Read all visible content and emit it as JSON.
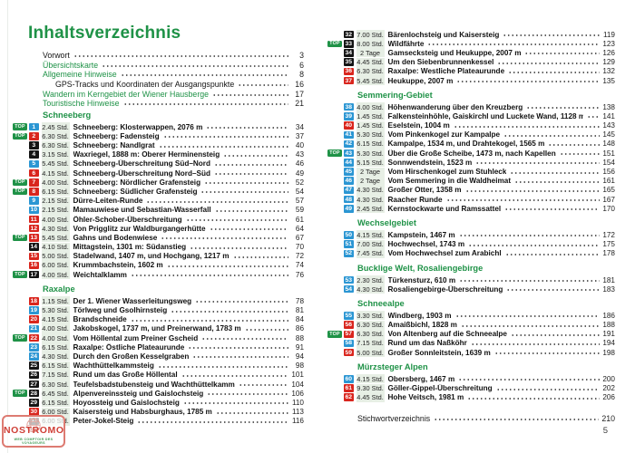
{
  "page": {
    "title": "Inhaltsverzeichnis",
    "page_number": "5"
  },
  "colors": {
    "green": "#1f9247",
    "blue": "#2b96d3",
    "red": "#d9251d",
    "black": "#141414",
    "time_bg": "#e7efe5",
    "stamp_red": "#cf3f36",
    "stamp_green": "#3f9a52",
    "stamp_border": "#dd7b72"
  },
  "labels": {
    "top_badge": "TOP"
  },
  "front_matter": [
    {
      "label": "Vorwort",
      "page": "3",
      "color": "black",
      "indent": false
    },
    {
      "label": "Übersichtskarte",
      "page": "6",
      "color": "green",
      "indent": false
    },
    {
      "label": "Allgemeine Hinweise",
      "page": "8",
      "color": "green",
      "indent": false
    },
    {
      "label": "GPS-Tracks und Koordinaten der Ausgangspunkte",
      "page": "16",
      "color": "black",
      "indent": true
    },
    {
      "label": "Wandern im Kerngebiet der Wiener Hausberge",
      "page": "17",
      "color": "green",
      "indent": false
    },
    {
      "label": "Touristische Hinweise",
      "page": "21",
      "color": "green",
      "indent": false
    }
  ],
  "left_column": [
    {
      "type": "section",
      "title": "Schneeberg"
    },
    {
      "type": "tour",
      "top": true,
      "num": "1",
      "difficulty": "blue",
      "time": "2.45 Std.",
      "title": "Schneeberg: Klosterwappen, 2076 m",
      "page": "34"
    },
    {
      "type": "tour",
      "top": true,
      "num": "2",
      "difficulty": "red",
      "time": "6.30 Std.",
      "title": "Schneeberg: Fadensteig",
      "page": "37"
    },
    {
      "type": "tour",
      "top": false,
      "num": "3",
      "difficulty": "black",
      "time": "6.30 Std.",
      "title": "Schneeberg: Nandlgrat",
      "page": "40"
    },
    {
      "type": "tour",
      "top": false,
      "num": "4",
      "difficulty": "black",
      "time": "3.15 Std.",
      "title": "Waxriegel, 1888 m: Oberer Herminensteig",
      "page": "43"
    },
    {
      "type": "tour",
      "top": false,
      "num": "5",
      "difficulty": "blue",
      "time": "5.45 Std.",
      "title": "Schneeberg-Überschreitung Süd–Nord",
      "page": "46"
    },
    {
      "type": "tour",
      "top": false,
      "num": "6",
      "difficulty": "red",
      "time": "4.15 Std.",
      "title": "Schneeberg-Überschreitung Nord–Süd",
      "page": "49"
    },
    {
      "type": "tour",
      "top": true,
      "num": "7",
      "difficulty": "red",
      "time": "4.00 Std.",
      "title": "Schneeberg: Nördlicher Grafensteig",
      "page": "52"
    },
    {
      "type": "tour",
      "top": true,
      "num": "8",
      "difficulty": "red",
      "time": "6.15 Std.",
      "title": "Schneeberg: Südlicher Grafensteig",
      "page": "54"
    },
    {
      "type": "tour",
      "top": false,
      "num": "9",
      "difficulty": "blue",
      "time": "2.15 Std.",
      "title": "Dürre-Leiten-Runde",
      "page": "57"
    },
    {
      "type": "tour",
      "top": false,
      "num": "10",
      "difficulty": "blue",
      "time": "2.15 Std.",
      "title": "Mamauwiese und Sebastian-Wasserfall",
      "page": "59"
    },
    {
      "type": "tour",
      "top": false,
      "num": "11",
      "difficulty": "red",
      "time": "4.00 Std.",
      "title": "Öhler-Schober-Überschreitung",
      "page": "61"
    },
    {
      "type": "tour",
      "top": false,
      "num": "12",
      "difficulty": "red",
      "time": "4.30 Std.",
      "title": "Von Prigglitz zur Waldburgangerhütte",
      "page": "64"
    },
    {
      "type": "tour",
      "top": true,
      "num": "13",
      "difficulty": "red",
      "time": "5.45 Std.",
      "title": "Gahns und Bodenwiese",
      "page": "67"
    },
    {
      "type": "tour",
      "top": false,
      "num": "14",
      "difficulty": "black",
      "time": "4.10 Std.",
      "title": "Mittagstein, 1301 m: Südanstieg",
      "page": "70"
    },
    {
      "type": "tour",
      "top": false,
      "num": "15",
      "difficulty": "red",
      "time": "5.00 Std.",
      "title": "Stadelwand, 1407 m, und Hochgang, 1217 m",
      "page": "72"
    },
    {
      "type": "tour",
      "top": false,
      "num": "16",
      "difficulty": "red",
      "time": "6.00 Std.",
      "title": "Krummbachstein, 1602 m",
      "page": "74"
    },
    {
      "type": "tour",
      "top": true,
      "num": "17",
      "difficulty": "black",
      "time": "4.00 Std.",
      "title": "Weichtalklamm",
      "page": "76"
    },
    {
      "type": "section",
      "title": "Raxalpe"
    },
    {
      "type": "tour",
      "top": false,
      "num": "18",
      "difficulty": "red",
      "time": "1.15 Std.",
      "title": "Der 1. Wiener Wasserleitungsweg",
      "page": "78"
    },
    {
      "type": "tour",
      "top": false,
      "num": "19",
      "difficulty": "blue",
      "time": "5.30 Std.",
      "title": "Törlweg und Gsolhirnsteig",
      "page": "81"
    },
    {
      "type": "tour",
      "top": false,
      "num": "20",
      "difficulty": "red",
      "time": "4.15 Std.",
      "title": "Brandschneide",
      "page": "84"
    },
    {
      "type": "tour",
      "top": false,
      "num": "21",
      "difficulty": "blue",
      "time": "4.00 Std.",
      "title": "Jakobskogel, 1737 m, und Preinerwand, 1783 m",
      "page": "86"
    },
    {
      "type": "tour",
      "top": true,
      "num": "22",
      "difficulty": "red",
      "time": "4.00 Std.",
      "title": "Vom Höllental zum Preiner Gscheid",
      "page": "88"
    },
    {
      "type": "tour",
      "top": false,
      "num": "23",
      "difficulty": "blue",
      "time": "6.15 Std.",
      "title": "Raxalpe: Östliche Plateaurunde",
      "page": "91"
    },
    {
      "type": "tour",
      "top": false,
      "num": "24",
      "difficulty": "blue",
      "time": "4.30 Std.",
      "title": "Durch den Großen Kesselgraben",
      "page": "94"
    },
    {
      "type": "tour",
      "top": false,
      "num": "25",
      "difficulty": "black",
      "time": "6.15 Std.",
      "title": "Wachthüttelkammsteig",
      "page": "98"
    },
    {
      "type": "tour",
      "top": false,
      "num": "26",
      "difficulty": "black",
      "time": "7.15 Std.",
      "title": "Rund um das Große Höllental",
      "page": "101"
    },
    {
      "type": "tour",
      "top": false,
      "num": "27",
      "difficulty": "black",
      "time": "6.30 Std.",
      "title": "Teufelsbadstubensteig und Wachthüttelkamm",
      "page": "104"
    },
    {
      "type": "tour",
      "top": true,
      "num": "28",
      "difficulty": "black",
      "time": "6.45 Std.",
      "title": "Alpenvereinssteig und Gaislochsteig",
      "page": "106"
    },
    {
      "type": "tour",
      "top": false,
      "num": "29",
      "difficulty": "black",
      "time": "6.15 Std.",
      "title": "Hoyossteig und Gaislochsteig",
      "page": "110"
    },
    {
      "type": "tour",
      "top": false,
      "num": "30",
      "difficulty": "red",
      "time": "6.00 Std.",
      "title": "Kaisersteig und Habsburghaus, 1785 m",
      "page": "113"
    },
    {
      "type": "tour",
      "top": false,
      "num": "31",
      "difficulty": "black",
      "time": "6.00 Std.",
      "title": "Peter-Jokel-Steig",
      "page": "116"
    }
  ],
  "right_column": [
    {
      "type": "tour",
      "top": false,
      "num": "32",
      "difficulty": "black",
      "time": "7.00 Std.",
      "title": "Bärenlochsteig und Kaisersteig",
      "page": "119"
    },
    {
      "type": "tour",
      "top": true,
      "num": "33",
      "difficulty": "black",
      "time": "8.00 Std.",
      "title": "Wildfährte",
      "page": "123"
    },
    {
      "type": "tour",
      "top": false,
      "num": "34",
      "difficulty": "black",
      "time": "2 Tage",
      "title": "Gamsecksteig und Heukuppe, 2007 m",
      "page": "126"
    },
    {
      "type": "tour",
      "top": false,
      "num": "35",
      "difficulty": "black",
      "time": "4.45 Std.",
      "title": "Um den Siebenbrunnenkessel",
      "page": "129"
    },
    {
      "type": "tour",
      "top": false,
      "num": "36",
      "difficulty": "red",
      "time": "6.30 Std.",
      "title": "Raxalpe: Westliche Plateaurunde",
      "page": "132"
    },
    {
      "type": "tour",
      "top": false,
      "num": "37",
      "difficulty": "red",
      "time": "5.45 Std.",
      "title": "Heukuppe, 2007 m",
      "page": "135"
    },
    {
      "type": "section",
      "title": "Semmering-Gebiet"
    },
    {
      "type": "tour",
      "top": false,
      "num": "38",
      "difficulty": "blue",
      "time": "4.00 Std.",
      "title": "Höhenwanderung über den Kreuzberg",
      "page": "138"
    },
    {
      "type": "tour",
      "top": false,
      "num": "39",
      "difficulty": "blue",
      "time": "1.45 Std.",
      "title": "Falkensteinhöhle, Gaiskirchl und Luckete Wand, 1128 m",
      "page": "141"
    },
    {
      "type": "tour",
      "top": false,
      "num": "40",
      "difficulty": "red",
      "time": "1.45 Std.",
      "title": "Eselstein, 1004 m",
      "page": "143"
    },
    {
      "type": "tour",
      "top": false,
      "num": "41",
      "difficulty": "blue",
      "time": "5.30 Std.",
      "title": "Vom Pinkenkogel zur Kampalpe",
      "page": "145"
    },
    {
      "type": "tour",
      "top": false,
      "num": "42",
      "difficulty": "blue",
      "time": "6.15 Std.",
      "title": "Kampalpe, 1534 m, und Drahtekogel, 1565 m",
      "page": "148"
    },
    {
      "type": "tour",
      "top": true,
      "num": "43",
      "difficulty": "blue",
      "time": "5.30 Std.",
      "title": "Über die Große Scheibe, 1473 m, nach Kapellen",
      "page": "151"
    },
    {
      "type": "tour",
      "top": false,
      "num": "44",
      "difficulty": "blue",
      "time": "5.15 Std.",
      "title": "Sonnwendstein, 1523 m",
      "page": "154"
    },
    {
      "type": "tour",
      "top": false,
      "num": "45",
      "difficulty": "blue",
      "time": "2 Tage",
      "title": "Vom Hirschenkogel zum Stuhleck",
      "page": "156"
    },
    {
      "type": "tour",
      "top": false,
      "num": "46",
      "difficulty": "blue",
      "time": "2 Tage",
      "title": "Vom Semmering in die Waldheimat",
      "page": "161"
    },
    {
      "type": "tour",
      "top": false,
      "num": "47",
      "difficulty": "blue",
      "time": "4.30 Std.",
      "title": "Großer Otter, 1358 m",
      "page": "165"
    },
    {
      "type": "tour",
      "top": false,
      "num": "48",
      "difficulty": "blue",
      "time": "4.30 Std.",
      "title": "Raacher Runde",
      "page": "167"
    },
    {
      "type": "tour",
      "top": false,
      "num": "49",
      "difficulty": "blue",
      "time": "2.45 Std.",
      "title": "Kernstockwarte und Ramssattel",
      "page": "170"
    },
    {
      "type": "section",
      "title": "Wechselgebiet"
    },
    {
      "type": "tour",
      "top": false,
      "num": "50",
      "difficulty": "blue",
      "time": "4.15 Std.",
      "title": "Kampstein, 1467 m",
      "page": "172"
    },
    {
      "type": "tour",
      "top": false,
      "num": "51",
      "difficulty": "blue",
      "time": "7.00 Std.",
      "title": "Hochwechsel, 1743 m",
      "page": "175"
    },
    {
      "type": "tour",
      "top": false,
      "num": "52",
      "difficulty": "blue",
      "time": "7.45 Std.",
      "title": "Vom Hochwechsel zum Arabichl",
      "page": "178"
    },
    {
      "type": "section",
      "title": "Bucklige Welt, Rosaliengebirge"
    },
    {
      "type": "tour",
      "top": false,
      "num": "53",
      "difficulty": "blue",
      "time": "2.30 Std.",
      "title": "Türkensturz, 610 m",
      "page": "181"
    },
    {
      "type": "tour",
      "top": false,
      "num": "54",
      "difficulty": "blue",
      "time": "4.30 Std.",
      "title": "Rosaliengebirge-Überschreitung",
      "page": "183"
    },
    {
      "type": "section",
      "title": "Schneealpe"
    },
    {
      "type": "tour",
      "top": false,
      "num": "55",
      "difficulty": "blue",
      "time": "3.30 Std.",
      "title": "Windberg, 1903 m",
      "page": "186"
    },
    {
      "type": "tour",
      "top": false,
      "num": "56",
      "difficulty": "red",
      "time": "6.30 Std.",
      "title": "Amaißbichl, 1828 m",
      "page": "188"
    },
    {
      "type": "tour",
      "top": true,
      "num": "57",
      "difficulty": "red",
      "time": "6.30 Std.",
      "title": "Von Altenberg auf die Schneealpe",
      "page": "191"
    },
    {
      "type": "tour",
      "top": false,
      "num": "58",
      "difficulty": "blue",
      "time": "7.15 Std.",
      "title": "Rund um das Naßköhr",
      "page": "194"
    },
    {
      "type": "tour",
      "top": false,
      "num": "59",
      "difficulty": "red",
      "time": "5.00 Std.",
      "title": "Großer Sonnleitstein, 1639 m",
      "page": "198"
    },
    {
      "type": "section",
      "title": "Mürzsteger Alpen"
    },
    {
      "type": "tour",
      "top": false,
      "num": "60",
      "difficulty": "blue",
      "time": "4.15 Std.",
      "title": "Obersberg, 1467 m",
      "page": "200"
    },
    {
      "type": "tour",
      "top": false,
      "num": "61",
      "difficulty": "red",
      "time": "9.30 Std.",
      "title": "Göller-Gippel-Überschreitung",
      "page": "202"
    },
    {
      "type": "tour",
      "top": false,
      "num": "62",
      "difficulty": "red",
      "time": "4.45 Std.",
      "title": "Hohe Veitsch, 1981 m",
      "page": "206"
    },
    {
      "type": "index",
      "label": "Stichwortverzeichnis",
      "page": "210"
    }
  ],
  "stamp": {
    "title": "NOSTROMO",
    "subtitle": "WEB COMPTOIR DES VOYAGEURS"
  }
}
